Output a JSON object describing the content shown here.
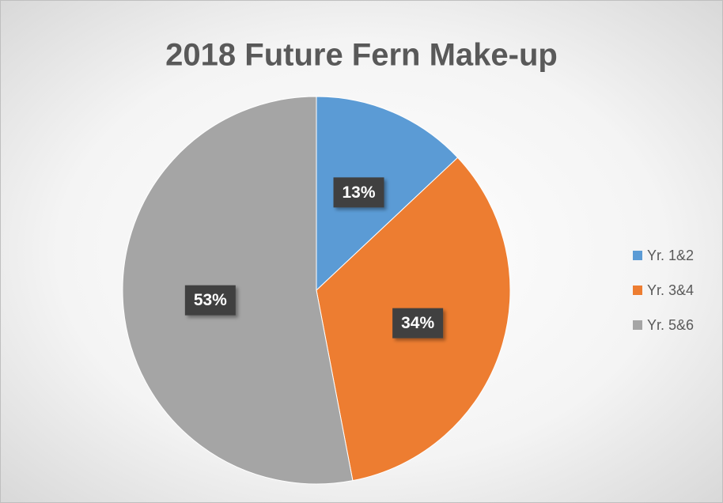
{
  "chart_data": {
    "type": "pie",
    "title": "2018 Future Fern Make-up",
    "categories": [
      "Yr. 1&2",
      "Yr. 3&4",
      "Yr. 5&6"
    ],
    "values": [
      13,
      34,
      53
    ],
    "value_labels": [
      "13%",
      "34%",
      "53%"
    ],
    "colors": [
      "#5b9bd5",
      "#ed7d31",
      "#a5a5a5"
    ],
    "legend": "right"
  }
}
